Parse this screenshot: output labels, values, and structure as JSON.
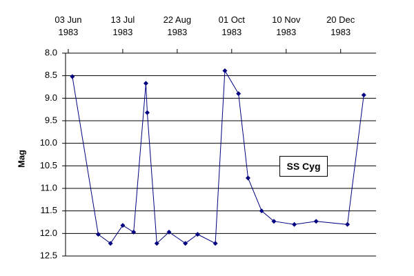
{
  "chart_data": {
    "type": "line",
    "y_label": "Mag",
    "annotation": "SS Cyg",
    "x": [
      "1983-06-06",
      "1983-06-25",
      "1983-07-04",
      "1983-07-13",
      "1983-07-21",
      "1983-07-30",
      "1983-07-31",
      "1983-08-07",
      "1983-08-16",
      "1983-08-28",
      "1983-09-06",
      "1983-09-19",
      "1983-09-26",
      "1983-10-06",
      "1983-10-13",
      "1983-10-23",
      "1983-11-01",
      "1983-11-16",
      "1983-12-02",
      "1983-12-25",
      "1984-01-06"
    ],
    "series": [
      {
        "color": "#000080",
        "values": [
          8.52,
          12.02,
          12.22,
          11.82,
          11.97,
          8.67,
          9.32,
          12.22,
          11.97,
          12.22,
          12.02,
          12.22,
          8.39,
          8.9,
          10.77,
          11.5,
          11.73,
          11.8,
          11.73,
          11.8,
          8.93
        ]
      }
    ],
    "xlim": [
      "1983-06-01",
      "1984-01-15"
    ],
    "xticks": [
      {
        "value": "1983-06-03",
        "label": "03 Jun\n1983"
      },
      {
        "value": "1983-07-13",
        "label": "13 Jul\n1983"
      },
      {
        "value": "1983-08-22",
        "label": "22 Aug\n1983"
      },
      {
        "value": "1983-10-01",
        "label": "01 Oct\n1983"
      },
      {
        "value": "1983-11-10",
        "label": "10 Nov\n1983"
      },
      {
        "value": "1983-12-20",
        "label": "20 Dec\n1983"
      }
    ],
    "ylim": [
      8.0,
      12.5
    ],
    "y_reversed": true,
    "yticks": [
      {
        "value": 8.0,
        "label": "8.0"
      },
      8.5,
      {
        "value": 9.0,
        "label": "9.0"
      },
      9.5,
      {
        "value": 10.0,
        "label": "10.0"
      },
      10.5,
      {
        "value": 11.0,
        "label": "11.0"
      },
      11.5,
      {
        "value": 12.0,
        "label": "12.0"
      },
      12.5
    ],
    "grid": true
  }
}
